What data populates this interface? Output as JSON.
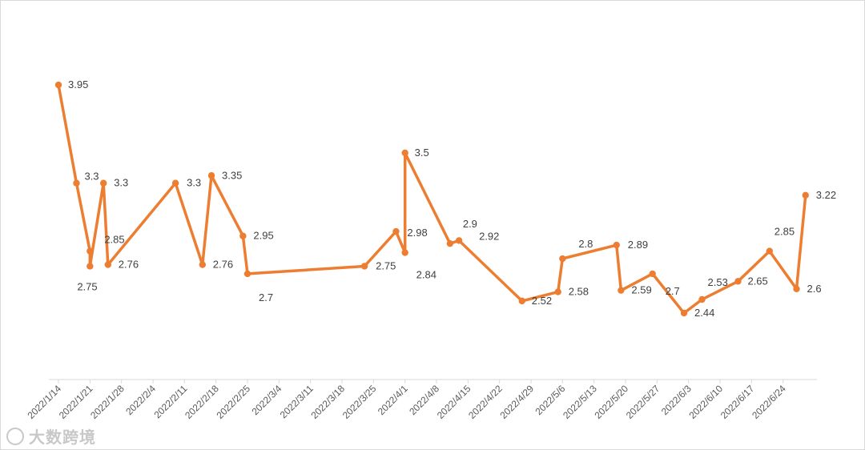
{
  "chart_data": {
    "type": "line",
    "color": "#ED7D31",
    "grid": false,
    "xlim": [
      "2022-01-14",
      "2022-07-01"
    ],
    "ylim": [
      2.0,
      4.3
    ],
    "x_ticks": [
      "2022/1/14",
      "2022/1/21",
      "2022/1/28",
      "2022/2/4",
      "2022/2/11",
      "2022/2/18",
      "2022/2/25",
      "2022/3/4",
      "2022/3/11",
      "2022/3/18",
      "2022/3/25",
      "2022/4/1",
      "2022/4/8",
      "2022/4/15",
      "2022/4/22",
      "2022/4/29",
      "2022/5/6",
      "2022/5/13",
      "2022/5/20",
      "2022/5/27",
      "2022/6/3",
      "2022/6/10",
      "2022/6/17",
      "2022/6/24"
    ],
    "series": [
      {
        "points": [
          {
            "x": "2022-01-14",
            "y": 3.95,
            "label": "3.95"
          },
          {
            "x": "2022-01-18",
            "y": 3.3,
            "label": "3.3"
          },
          {
            "x": "2022-01-21",
            "y": 2.85,
            "label": "2.85"
          },
          {
            "x": "2022-01-21",
            "y": 2.75,
            "label": "2.75"
          },
          {
            "x": "2022-01-24",
            "y": 3.3,
            "label": "3.3"
          },
          {
            "x": "2022-01-25",
            "y": 2.76,
            "label": "2.76"
          },
          {
            "x": "2022-02-09",
            "y": 3.3,
            "label": "3.3"
          },
          {
            "x": "2022-02-15",
            "y": 2.76,
            "label": "2.76"
          },
          {
            "x": "2022-02-17",
            "y": 3.35,
            "label": "3.35"
          },
          {
            "x": "2022-02-24",
            "y": 2.95,
            "label": "2.95"
          },
          {
            "x": "2022-02-25",
            "y": 2.7,
            "label": "2.7"
          },
          {
            "x": "2022-03-23",
            "y": 2.75,
            "label": "2.75"
          },
          {
            "x": "2022-03-30",
            "y": 2.98,
            "label": "2.98"
          },
          {
            "x": "2022-04-01",
            "y": 2.84,
            "label": "2.84"
          },
          {
            "x": "2022-04-01",
            "y": 3.5,
            "label": "3.5"
          },
          {
            "x": "2022-04-11",
            "y": 2.9,
            "label": "2.9"
          },
          {
            "x": "2022-04-13",
            "y": 2.92,
            "label": "2.92"
          },
          {
            "x": "2022-04-27",
            "y": 2.52,
            "label": "2.52"
          },
          {
            "x": "2022-05-05",
            "y": 2.58,
            "label": "2.58"
          },
          {
            "x": "2022-05-06",
            "y": 2.8,
            "label": "2.8"
          },
          {
            "x": "2022-05-18",
            "y": 2.89,
            "label": "2.89"
          },
          {
            "x": "2022-05-19",
            "y": 2.59,
            "label": "2.59"
          },
          {
            "x": "2022-05-26",
            "y": 2.7,
            "label": "2.7"
          },
          {
            "x": "2022-06-02",
            "y": 2.44,
            "label": "2.44"
          },
          {
            "x": "2022-06-06",
            "y": 2.53,
            "label": "2.53"
          },
          {
            "x": "2022-06-14",
            "y": 2.65,
            "label": "2.65"
          },
          {
            "x": "2022-06-21",
            "y": 2.85,
            "label": "2.85"
          },
          {
            "x": "2022-06-27",
            "y": 2.6,
            "label": "2.6"
          },
          {
            "x": "2022-06-29",
            "y": 3.22,
            "label": "3.22"
          }
        ]
      }
    ]
  },
  "watermark": {
    "text": "大数跨境",
    "logo_icon": "brand-logo-icon"
  }
}
